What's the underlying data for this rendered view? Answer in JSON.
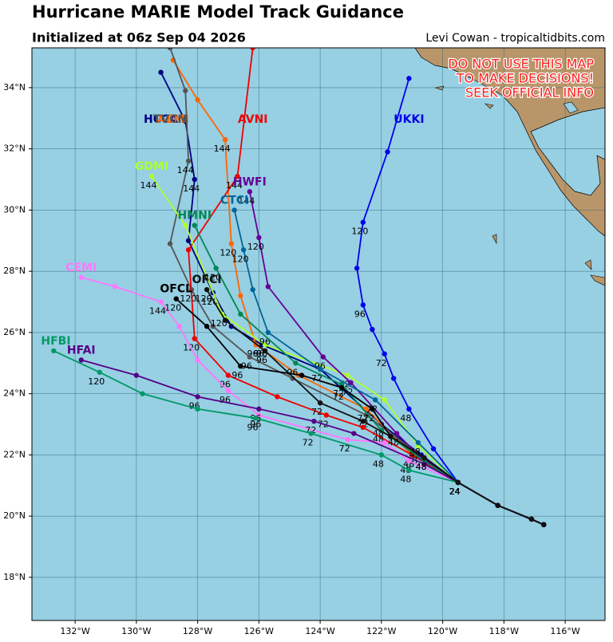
{
  "chart_data": {
    "type": "track-map",
    "title": "Hurricane MARIE Model Track Guidance",
    "subtitle": "Initialized at 06z Sep 04 2026",
    "credit": "Levi Cowan - tropicaltidbits.com",
    "warning": [
      "DO NOT USE THIS MAP",
      "TO MAKE DECISIONS!",
      "SEEK OFFICIAL INFO"
    ],
    "xlim": [
      -133.41,
      -114.7
    ],
    "ylim": [
      16.59,
      35.3
    ],
    "xticks": [
      {
        "value": -132,
        "label": "132°W"
      },
      {
        "value": -130,
        "label": "130°W"
      },
      {
        "value": -128,
        "label": "128°W"
      },
      {
        "value": -126,
        "label": "126°W"
      },
      {
        "value": -124,
        "label": "124°W"
      },
      {
        "value": -122,
        "label": "122°W"
      },
      {
        "value": -120,
        "label": "120°W"
      },
      {
        "value": -118,
        "label": "118°W"
      },
      {
        "value": -116,
        "label": "116°W"
      }
    ],
    "yticks": [
      {
        "value": 18,
        "label": "18°N"
      },
      {
        "value": 20,
        "label": "20°N"
      },
      {
        "value": 22,
        "label": "22°N"
      },
      {
        "value": 24,
        "label": "24°N"
      },
      {
        "value": 26,
        "label": "26°N"
      },
      {
        "value": 28,
        "label": "28°N"
      },
      {
        "value": 30,
        "label": "30°N"
      },
      {
        "value": 32,
        "label": "32°N"
      },
      {
        "value": 34,
        "label": "34°N"
      }
    ],
    "grid": true,
    "series": [
      {
        "name": "UKKI",
        "color": "#0000ee",
        "x": [
          -116.7,
          -118.2,
          -119.5,
          -120.3,
          -121.1,
          -121.6,
          -121.9,
          -122.3,
          -122.6,
          -122.8,
          -122.6,
          -121.8,
          -121.1
        ],
        "y": [
          19.72,
          20.35,
          21.1,
          22.2,
          23.5,
          24.5,
          25.3,
          26.1,
          26.9,
          28.1,
          29.6,
          31.9,
          34.3
        ],
        "point_labels": [
          null,
          null,
          "24",
          null,
          "48",
          null,
          "72",
          null,
          "96",
          null,
          "120",
          null,
          null
        ]
      },
      {
        "name": "HCCA",
        "color": "#000080",
        "x": [
          -116.7,
          -117.1,
          -118.2,
          -119.5,
          -120.7,
          -122.0,
          -124.0,
          -125.9,
          -126.9,
          -127.5,
          -128.3,
          -128.1,
          -128.4,
          -129.2
        ],
        "y": [
          19.72,
          19.9,
          20.35,
          21.1,
          22.0,
          23.0,
          24.8,
          25.6,
          26.2,
          27.3,
          29.0,
          31.0,
          32.9,
          34.5
        ],
        "point_labels": [
          null,
          null,
          null,
          "24",
          null,
          "48",
          "72",
          "96",
          null,
          "120",
          null,
          "144",
          null,
          null
        ]
      },
      {
        "name": "AEMI",
        "color": "#ff6600",
        "x": [
          -116.7,
          -117.1,
          -118.2,
          -119.5,
          -121.0,
          -122.5,
          -124.7,
          -126.1,
          -126.6,
          -126.9,
          -127.1,
          -128.0,
          -128.8
        ],
        "y": [
          19.72,
          19.9,
          20.35,
          21.1,
          22.0,
          23.5,
          24.6,
          25.6,
          27.2,
          28.9,
          32.3,
          33.6,
          34.9
        ],
        "point_labels": [
          null,
          null,
          null,
          "24",
          "48",
          "72",
          null,
          "96",
          null,
          "120",
          "144",
          null,
          null
        ]
      },
      {
        "name": "TVCN",
        "color": "#555555",
        "x": [
          -116.7,
          -117.1,
          -118.2,
          -119.5,
          -120.9,
          -122.5,
          -124.9,
          -126.3,
          -127.5,
          -128.2,
          -128.9,
          -128.3,
          -128.4,
          -128.9
        ],
        "y": [
          19.72,
          19.9,
          20.35,
          21.1,
          22.1,
          23.3,
          24.5,
          25.2,
          26.2,
          27.4,
          28.9,
          31.6,
          33.9,
          35.3
        ],
        "point_labels": [
          null,
          null,
          null,
          "24",
          "48",
          "72",
          null,
          "96",
          null,
          "120",
          null,
          "144",
          null,
          null
        ]
      },
      {
        "name": "AVNI",
        "color": "#ee0000",
        "x": [
          -116.7,
          -117.1,
          -118.2,
          -119.5,
          -121.0,
          -122.6,
          -123.8,
          -125.4,
          -127.0,
          -128.1,
          -128.3,
          -126.7,
          -126.2
        ],
        "y": [
          19.72,
          19.9,
          20.35,
          21.1,
          22.0,
          22.9,
          23.3,
          23.9,
          24.6,
          25.8,
          28.7,
          31.1,
          35.3
        ],
        "point_labels": [
          null,
          null,
          null,
          "24",
          "48",
          null,
          "72",
          null,
          "96",
          "120",
          null,
          "144",
          null
        ]
      },
      {
        "name": "GDMI",
        "color": "#adff2f",
        "x": [
          -116.7,
          -117.1,
          -118.2,
          -119.5,
          -120.8,
          -121.9,
          -123.1,
          -125.8,
          -127.2,
          -128.4,
          -129.5
        ],
        "y": [
          19.72,
          19.9,
          20.35,
          21.1,
          22.3,
          23.8,
          24.6,
          25.6,
          26.6,
          29.5,
          31.1
        ],
        "point_labels": [
          null,
          null,
          null,
          "24",
          "48",
          null,
          "72",
          "96",
          "120",
          null,
          "144"
        ]
      },
      {
        "name": "HWFI",
        "color": "#660099",
        "x": [
          -116.7,
          -117.1,
          -118.2,
          -119.5,
          -120.7,
          -121.5,
          -123.0,
          -123.9,
          -125.7,
          -126.0,
          -126.3
        ],
        "y": [
          19.72,
          19.9,
          20.35,
          21.1,
          21.9,
          22.7,
          24.36,
          25.2,
          27.5,
          29.1,
          30.6
        ],
        "point_labels": [
          null,
          null,
          null,
          "24",
          null,
          "48",
          "72",
          "96",
          null,
          "120",
          "144"
        ]
      },
      {
        "name": "CTCI",
        "color": "#006699",
        "x": [
          -116.7,
          -117.1,
          -118.2,
          -119.5,
          -120.8,
          -122.2,
          -124.0,
          -125.7,
          -126.2,
          -126.5,
          -126.8
        ],
        "y": [
          19.72,
          19.9,
          20.35,
          21.1,
          22.4,
          23.8,
          24.8,
          26.0,
          27.4,
          28.7,
          30.0
        ],
        "point_labels": [
          null,
          null,
          null,
          "24",
          "48",
          "72",
          null,
          "96",
          null,
          "120",
          null
        ]
      },
      {
        "name": "HMNI",
        "color": "#008855",
        "x": [
          -116.7,
          -117.1,
          -118.2,
          -119.5,
          -120.6,
          -122.0,
          -123.3,
          -124.8,
          -126.6,
          -127.4,
          -128.1
        ],
        "y": [
          19.72,
          19.9,
          20.35,
          21.1,
          21.8,
          22.8,
          24.3,
          25.0,
          26.6,
          28.1,
          29.5
        ],
        "point_labels": [
          null,
          null,
          null,
          "24",
          null,
          "48",
          "72",
          "96",
          null,
          "120",
          null
        ]
      },
      {
        "name": "CEMI",
        "color": "#ff77ff",
        "x": [
          -116.7,
          -117.1,
          -118.2,
          -119.5,
          -121.1,
          -121.9,
          -123.1,
          -126.0,
          -127.0,
          -128.0,
          -128.6,
          -129.2,
          -130.7,
          -131.8
        ],
        "y": [
          19.72,
          19.9,
          20.35,
          21.1,
          21.8,
          22.4,
          22.5,
          23.3,
          24.1,
          25.1,
          26.2,
          27.0,
          27.5,
          27.8
        ],
        "point_labels": [
          null,
          null,
          null,
          "24",
          "48",
          null,
          "72",
          "96",
          "96",
          null,
          null,
          "144",
          null,
          null
        ]
      },
      {
        "name": "HFAI",
        "color": "#550088",
        "x": [
          -116.7,
          -117.1,
          -118.2,
          -119.5,
          -120.6,
          -122.9,
          -124.2,
          -126.0,
          -128.0,
          -130.0,
          -131.8
        ],
        "y": [
          19.72,
          19.9,
          20.35,
          21.1,
          21.7,
          22.7,
          23.1,
          23.5,
          23.9,
          24.6,
          25.1
        ],
        "point_labels": [
          null,
          null,
          null,
          "24",
          null,
          null,
          "72",
          "96",
          "96",
          null,
          null
        ]
      },
      {
        "name": "HFBI",
        "color": "#009966",
        "x": [
          -116.7,
          -117.1,
          -118.2,
          -119.5,
          -121.1,
          -122.0,
          -124.3,
          -126.1,
          -128.0,
          -129.8,
          -131.2,
          -132.7
        ],
        "y": [
          19.72,
          19.9,
          20.35,
          21.1,
          21.5,
          22.0,
          22.7,
          23.2,
          23.5,
          24.0,
          24.7,
          25.4
        ],
        "point_labels": [
          null,
          null,
          null,
          "24",
          "48",
          "48",
          "72",
          "96",
          null,
          null,
          "120",
          null
        ]
      },
      {
        "name": "OFCL",
        "color": "#000000",
        "x": [
          -116.7,
          -117.1,
          -118.2,
          -119.5,
          -120.6,
          -121.7,
          -122.3,
          -123.3,
          -124.6,
          -126.6,
          -127.7,
          -128.7
        ],
        "y": [
          19.72,
          19.9,
          20.35,
          21.1,
          21.9,
          22.6,
          23.5,
          24.2,
          24.6,
          24.9,
          26.2,
          27.1
        ],
        "point_labels": [
          null,
          null,
          null,
          "24",
          "48",
          null,
          "72",
          "72",
          null,
          "96",
          null,
          "120"
        ]
      },
      {
        "name": "OFCI",
        "color": "#111111",
        "x": [
          -116.7,
          -117.1,
          -118.2,
          -119.5,
          -120.6,
          -121.7,
          -122.6,
          -124.0,
          -125.8,
          -127.1,
          -127.7
        ],
        "y": [
          19.72,
          19.9,
          20.35,
          21.1,
          21.9,
          22.6,
          23.1,
          23.7,
          25.4,
          26.4,
          27.4
        ],
        "point_labels": [
          null,
          null,
          null,
          "24",
          "48",
          null,
          null,
          "72",
          "96",
          null,
          "120"
        ]
      }
    ]
  }
}
